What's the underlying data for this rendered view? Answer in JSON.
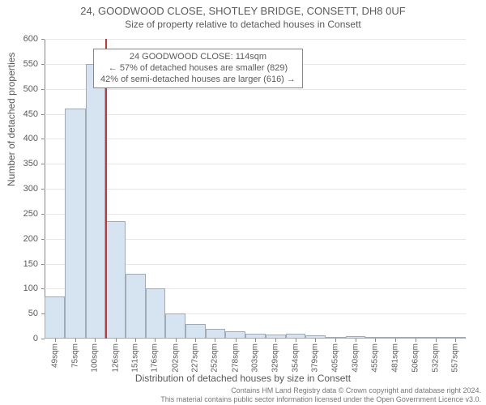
{
  "title": "24, GOODWOOD CLOSE, SHOTLEY BRIDGE, CONSETT, DH8 0UF",
  "subtitle": "Size of property relative to detached houses in Consett",
  "y_axis_title": "Number of detached properties",
  "x_axis_title": "Distribution of detached houses by size in Consett",
  "footer_line1": "Contains HM Land Registry data © Crown copyright and database right 2024.",
  "footer_line2": "This material contains public sector information licensed under the Open Government Licence v3.0.",
  "info_box": {
    "line1": "24 GOODWOOD CLOSE: 114sqm",
    "line2": "← 57% of detached houses are smaller (829)",
    "line3": "42% of semi-detached houses are larger (616) →"
  },
  "chart": {
    "type": "histogram",
    "background_color": "#ffffff",
    "grid_color": "#e6e6e6",
    "axis_color": "#888888",
    "text_color": "#5a5a5a",
    "bar_fill": "#d6e4f2",
    "bar_border": "rgba(0,0,0,0.25)",
    "ref_line_color": "#cc3333",
    "ref_line_x_value": 114,
    "x_min": 36,
    "x_max": 570,
    "ylim": [
      0,
      600
    ],
    "ytick_step": 50,
    "x_tick_labels": [
      "49sqm",
      "75sqm",
      "100sqm",
      "126sqm",
      "151sqm",
      "176sqm",
      "202sqm",
      "227sqm",
      "252sqm",
      "278sqm",
      "303sqm",
      "329sqm",
      "354sqm",
      "379sqm",
      "405sqm",
      "430sqm",
      "455sqm",
      "481sqm",
      "506sqm",
      "532sqm",
      "557sqm"
    ],
    "x_tick_values": [
      49,
      75,
      100,
      126,
      151,
      176,
      202,
      227,
      252,
      278,
      303,
      329,
      354,
      379,
      405,
      430,
      455,
      481,
      506,
      532,
      557
    ],
    "bars": [
      {
        "x0": 36,
        "x1": 62,
        "value": 85
      },
      {
        "x0": 62,
        "x1": 88,
        "value": 460
      },
      {
        "x0": 88,
        "x1": 113,
        "value": 550
      },
      {
        "x0": 113,
        "x1": 139,
        "value": 235
      },
      {
        "x0": 139,
        "x1": 164,
        "value": 130
      },
      {
        "x0": 164,
        "x1": 189,
        "value": 100
      },
      {
        "x0": 189,
        "x1": 215,
        "value": 50
      },
      {
        "x0": 215,
        "x1": 240,
        "value": 30
      },
      {
        "x0": 240,
        "x1": 265,
        "value": 20
      },
      {
        "x0": 265,
        "x1": 291,
        "value": 15
      },
      {
        "x0": 291,
        "x1": 316,
        "value": 10
      },
      {
        "x0": 316,
        "x1": 342,
        "value": 8
      },
      {
        "x0": 342,
        "x1": 367,
        "value": 10
      },
      {
        "x0": 367,
        "x1": 392,
        "value": 6
      },
      {
        "x0": 392,
        "x1": 418,
        "value": 4
      },
      {
        "x0": 418,
        "x1": 443,
        "value": 5
      },
      {
        "x0": 443,
        "x1": 468,
        "value": 4
      },
      {
        "x0": 468,
        "x1": 494,
        "value": 3
      },
      {
        "x0": 494,
        "x1": 519,
        "value": 3
      },
      {
        "x0": 519,
        "x1": 545,
        "value": 3
      },
      {
        "x0": 545,
        "x1": 570,
        "value": 3
      }
    ]
  }
}
